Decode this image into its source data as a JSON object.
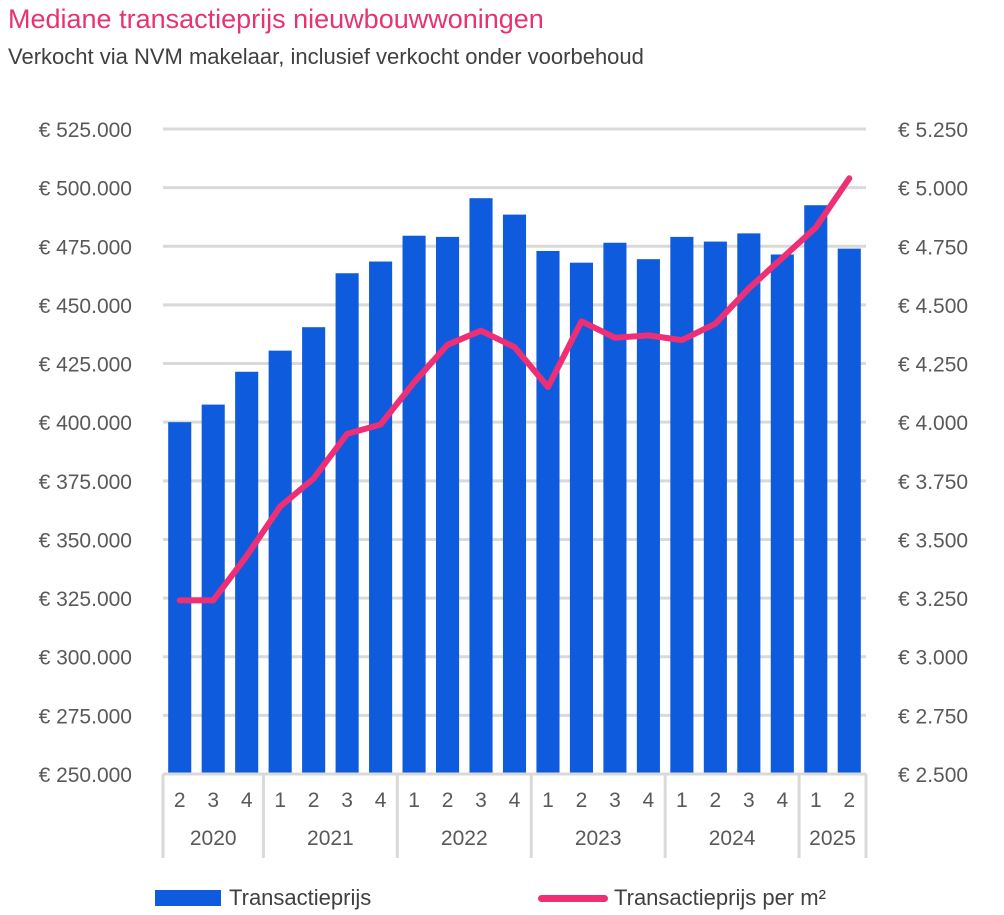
{
  "title": "Mediane transactieprijs nieuwbouwwoningen",
  "subtitle": "Verkocht via NVM makelaar, inclusief verkocht onder voorbehoud",
  "colors": {
    "title": "#E8336E",
    "bar": "#0F5BDD",
    "line": "#EE2F76",
    "grid": "#D9D9D9",
    "text": "#595959"
  },
  "chart_data": {
    "type": "bar",
    "title": "Mediane transactieprijs nieuwbouwwoningen",
    "subtitle": "Verkocht via NVM makelaar, inclusief verkocht onder voorbehoud",
    "xlabel": "",
    "ylabel": "",
    "quarters": [
      "2",
      "3",
      "4",
      "1",
      "2",
      "3",
      "4",
      "1",
      "2",
      "3",
      "4",
      "1",
      "2",
      "3",
      "4",
      "1",
      "2",
      "3",
      "4",
      "1",
      "2"
    ],
    "year_groups": [
      {
        "year": "2020",
        "count": 3
      },
      {
        "year": "2021",
        "count": 4
      },
      {
        "year": "2022",
        "count": 4
      },
      {
        "year": "2023",
        "count": 4
      },
      {
        "year": "2024",
        "count": 4
      },
      {
        "year": "2025",
        "count": 2
      }
    ],
    "ylim_left": [
      250000,
      525000
    ],
    "ylim_right": [
      2500,
      5250
    ],
    "left_ticks": [
      "€ 525.000",
      "€ 500.000",
      "€ 475.000",
      "€ 450.000",
      "€ 425.000",
      "€ 400.000",
      "€ 375.000",
      "€ 350.000",
      "€ 325.000",
      "€ 300.000",
      "€ 275.000",
      "€ 250.000"
    ],
    "right_ticks": [
      "€ 5.250",
      "€ 5.000",
      "€ 4.750",
      "€ 4.500",
      "€ 4.250",
      "€ 4.000",
      "€ 3.750",
      "€ 3.500",
      "€ 3.250",
      "€ 3.000",
      "€ 2.750",
      "€ 2.500"
    ],
    "grid": true,
    "legend_position": "bottom",
    "series": [
      {
        "name": "Transactieprijs",
        "type": "bar",
        "axis": "left",
        "values": [
          400000,
          407500,
          421500,
          430500,
          440500,
          463500,
          468500,
          479500,
          479000,
          495500,
          488500,
          473000,
          468000,
          476500,
          469500,
          479000,
          477000,
          480500,
          471500,
          492500,
          474000
        ]
      },
      {
        "name": "Transactieprijs per m²",
        "type": "line",
        "axis": "right",
        "values": [
          3240,
          3240,
          3430,
          3640,
          3760,
          3950,
          3990,
          4170,
          4330,
          4390,
          4320,
          4150,
          4430,
          4360,
          4370,
          4350,
          4420,
          4570,
          4700,
          4830,
          5040
        ]
      }
    ]
  }
}
